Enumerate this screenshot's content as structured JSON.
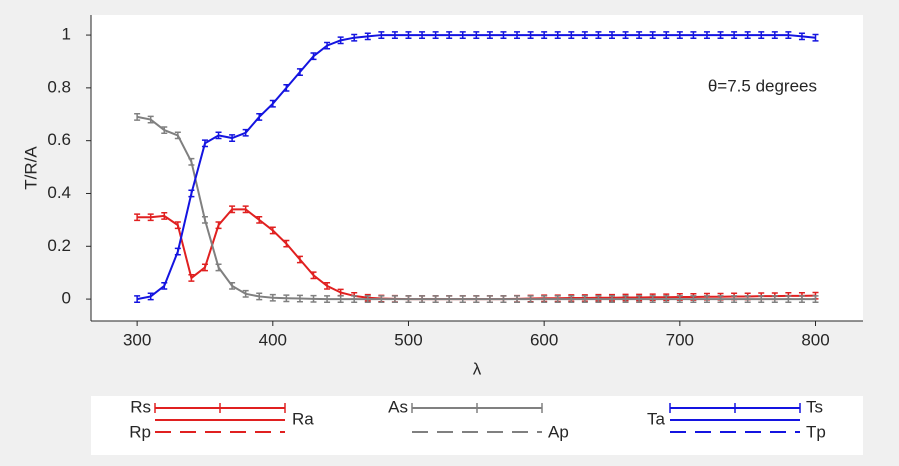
{
  "chart_data": {
    "type": "line",
    "xlabel": "λ",
    "ylabel": "T/R/A",
    "annotation": "θ=7.5 degrees",
    "xlim": [
      266,
      835
    ],
    "ylim": [
      -0.083,
      1.076
    ],
    "xticks": [
      300,
      400,
      500,
      600,
      700,
      800
    ],
    "yticks": [
      0,
      0.2,
      0.4,
      0.6,
      0.8,
      1
    ],
    "x": [
      300,
      310,
      320,
      330,
      340,
      350,
      360,
      370,
      380,
      390,
      400,
      410,
      420,
      430,
      440,
      450,
      460,
      470,
      480,
      490,
      500,
      510,
      520,
      530,
      540,
      550,
      560,
      570,
      580,
      590,
      600,
      610,
      620,
      630,
      640,
      650,
      660,
      670,
      680,
      690,
      700,
      710,
      720,
      730,
      740,
      750,
      760,
      770,
      780,
      790,
      800
    ],
    "series": [
      {
        "name": "Rs",
        "color": "#e02020",
        "values": [
          0.31,
          0.31,
          0.315,
          0.28,
          0.08,
          0.12,
          0.28,
          0.34,
          0.34,
          0.3,
          0.26,
          0.21,
          0.15,
          0.09,
          0.05,
          0.025,
          0.012,
          0.005,
          0.002,
          0.001,
          0,
          0,
          0,
          0,
          0,
          0,
          0,
          0,
          0.001,
          0.002,
          0.003,
          0.003,
          0.004,
          0.004,
          0.005,
          0.005,
          0.006,
          0.006,
          0.007,
          0.007,
          0.008,
          0.008,
          0.009,
          0.009,
          0.01,
          0.01,
          0.011,
          0.011,
          0.012,
          0.012,
          0.013
        ],
        "errors": [
          0.012,
          0.012,
          0.012,
          0.012,
          0.012,
          0.012,
          0.012,
          0.012,
          0.012,
          0.012,
          0.012,
          0.012,
          0.012,
          0.012,
          0.012,
          0.012,
          0.012,
          0.012,
          0.012,
          0.012,
          0.012,
          0.012,
          0.012,
          0.012,
          0.012,
          0.012,
          0.012,
          0.012,
          0.012,
          0.012,
          0.012,
          0.012,
          0.012,
          0.012,
          0.012,
          0.012,
          0.012,
          0.012,
          0.012,
          0.012,
          0.012,
          0.012,
          0.012,
          0.012,
          0.012,
          0.012,
          0.012,
          0.012,
          0.012,
          0.012,
          0.012
        ]
      },
      {
        "name": "As",
        "color": "#808080",
        "values": [
          0.69,
          0.68,
          0.64,
          0.62,
          0.52,
          0.3,
          0.12,
          0.05,
          0.02,
          0.01,
          0.005,
          0.003,
          0.002,
          0.001,
          0,
          0,
          0,
          0,
          0,
          0,
          0,
          0,
          0,
          0,
          0,
          0,
          0,
          0,
          0,
          0,
          0,
          0,
          0,
          0,
          0,
          0,
          0,
          0,
          0,
          0,
          0,
          0,
          0,
          0,
          0,
          0,
          0,
          0,
          0,
          0,
          0
        ],
        "errors": [
          0.012,
          0.012,
          0.012,
          0.012,
          0.012,
          0.012,
          0.012,
          0.012,
          0.012,
          0.012,
          0.012,
          0.012,
          0.012,
          0.012,
          0.012,
          0.012,
          0.012,
          0.012,
          0.012,
          0.012,
          0.012,
          0.012,
          0.012,
          0.012,
          0.012,
          0.012,
          0.012,
          0.012,
          0.012,
          0.012,
          0.012,
          0.012,
          0.012,
          0.012,
          0.012,
          0.012,
          0.012,
          0.012,
          0.012,
          0.012,
          0.012,
          0.012,
          0.012,
          0.012,
          0.012,
          0.012,
          0.012,
          0.012,
          0.012,
          0.012,
          0.012
        ]
      },
      {
        "name": "Ts",
        "color": "#1414e0",
        "values": [
          0,
          0.01,
          0.05,
          0.18,
          0.4,
          0.59,
          0.62,
          0.61,
          0.63,
          0.69,
          0.74,
          0.8,
          0.86,
          0.92,
          0.96,
          0.98,
          0.99,
          0.995,
          1,
          1,
          1,
          1,
          1,
          1,
          1,
          1,
          1,
          1,
          1,
          1,
          1,
          1,
          1,
          1,
          1,
          1,
          1,
          1,
          1,
          1,
          1,
          1,
          1,
          1,
          1,
          1,
          1,
          1,
          1,
          0.995,
          0.99
        ],
        "errors": [
          0.012,
          0.012,
          0.012,
          0.012,
          0.012,
          0.012,
          0.012,
          0.012,
          0.012,
          0.012,
          0.012,
          0.012,
          0.012,
          0.012,
          0.012,
          0.012,
          0.012,
          0.012,
          0.012,
          0.012,
          0.012,
          0.012,
          0.012,
          0.012,
          0.012,
          0.012,
          0.012,
          0.012,
          0.012,
          0.012,
          0.012,
          0.012,
          0.012,
          0.012,
          0.012,
          0.012,
          0.012,
          0.012,
          0.012,
          0.012,
          0.012,
          0.012,
          0.012,
          0.012,
          0.012,
          0.012,
          0.012,
          0.012,
          0.012,
          0.012,
          0.012
        ]
      }
    ],
    "other_lines": [
      {
        "name": "Rp",
        "color": "#e02020",
        "dashed": true
      },
      {
        "name": "Ra",
        "color": "#e02020",
        "dashed": false
      },
      {
        "name": "Ap",
        "color": "#808080",
        "dashed": true
      },
      {
        "name": "Ta",
        "color": "#1414e0",
        "dashed": false
      },
      {
        "name": "Tp",
        "color": "#1414e0",
        "dashed": true
      }
    ]
  }
}
